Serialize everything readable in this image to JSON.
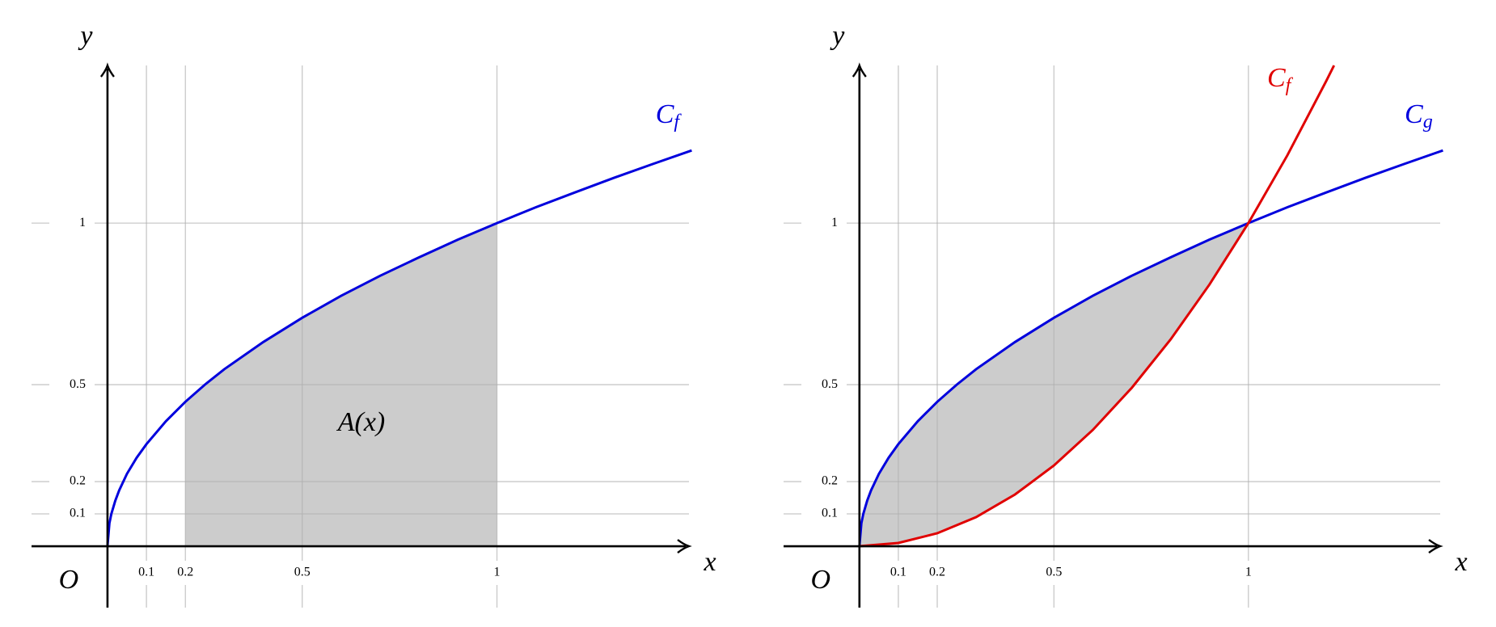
{
  "chart_data": [
    {
      "type": "line",
      "x_label": "x",
      "y_label": "y",
      "origin_label": "O",
      "annotation": "A(x)",
      "xlim": [
        -0.195,
        1.493
      ],
      "ylim": [
        -0.19,
        1.488
      ],
      "xticks": [
        0.1,
        0.2,
        0.5,
        1
      ],
      "yticks": [
        0.1,
        0.2,
        0.5,
        1
      ],
      "grid": true,
      "shade": {
        "from": 0.2,
        "to": 1,
        "color": "#cccccc"
      },
      "series": [
        {
          "name": "C_f",
          "color": "#0000dd",
          "x": [
            0,
            0.005,
            0.01,
            0.02,
            0.03,
            0.05,
            0.075,
            0.1,
            0.15,
            0.2,
            0.25,
            0.3,
            0.4,
            0.5,
            0.6,
            0.7,
            0.8,
            0.9,
            1,
            1.1,
            1.2,
            1.3,
            1.4,
            1.5
          ],
          "values": [
            0,
            0.071,
            0.1,
            0.141,
            0.173,
            0.224,
            0.274,
            0.316,
            0.387,
            0.447,
            0.5,
            0.548,
            0.632,
            0.707,
            0.775,
            0.837,
            0.894,
            0.949,
            1,
            1.049,
            1.095,
            1.14,
            1.183,
            1.225
          ]
        }
      ]
    },
    {
      "type": "line",
      "x_label": "x",
      "y_label": "y",
      "origin_label": "O",
      "xlim": [
        -0.195,
        1.493
      ],
      "ylim": [
        -0.19,
        1.488
      ],
      "xticks": [
        0.1,
        0.2,
        0.5,
        1
      ],
      "yticks": [
        0.1,
        0.2,
        0.5,
        1
      ],
      "grid": true,
      "shade": {
        "from": 0,
        "to": 1,
        "color": "#cccccc"
      },
      "series": [
        {
          "name": "C_g",
          "color": "#0000dd",
          "x": [
            0,
            0.005,
            0.01,
            0.02,
            0.03,
            0.05,
            0.075,
            0.1,
            0.15,
            0.2,
            0.25,
            0.3,
            0.4,
            0.5,
            0.6,
            0.7,
            0.8,
            0.9,
            1,
            1.1,
            1.2,
            1.3,
            1.4,
            1.5
          ],
          "values": [
            0,
            0.071,
            0.1,
            0.141,
            0.173,
            0.224,
            0.274,
            0.316,
            0.387,
            0.447,
            0.5,
            0.548,
            0.632,
            0.707,
            0.775,
            0.837,
            0.894,
            0.949,
            1,
            1.049,
            1.095,
            1.14,
            1.183,
            1.225
          ]
        },
        {
          "name": "C_f",
          "color": "#e00000",
          "x": [
            0,
            0.1,
            0.2,
            0.3,
            0.4,
            0.5,
            0.6,
            0.7,
            0.8,
            0.9,
            1,
            1.1,
            1.2,
            1.22
          ],
          "values": [
            0,
            0.01,
            0.04,
            0.09,
            0.16,
            0.25,
            0.36,
            0.49,
            0.64,
            0.81,
            1,
            1.21,
            1.44,
            1.488
          ]
        }
      ]
    }
  ]
}
